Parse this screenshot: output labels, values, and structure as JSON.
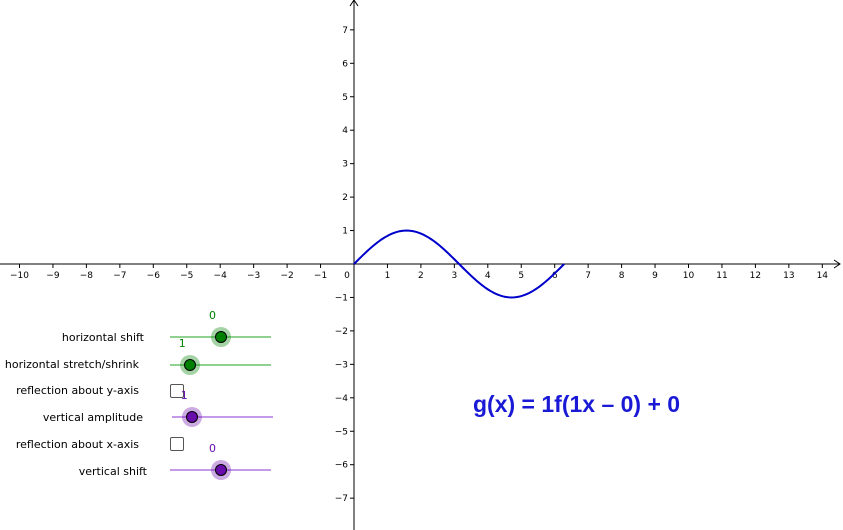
{
  "graph": {
    "x_ticks": [
      "-10",
      "-9",
      "-8",
      "-7",
      "-6",
      "-5",
      "-4",
      "-3",
      "-2",
      "-1",
      "0",
      "1",
      "2",
      "3",
      "4",
      "5",
      "6",
      "7",
      "8",
      "9",
      "10",
      "11",
      "12",
      "13",
      "14"
    ],
    "y_ticks": [
      "-7",
      "-6",
      "-5",
      "-4",
      "-3",
      "-2",
      "-1",
      "1",
      "2",
      "3",
      "4",
      "5",
      "6",
      "7"
    ],
    "curve": {
      "function": "sin",
      "x_range": [
        0,
        6.283
      ],
      "color": "#0000cc"
    }
  },
  "controls": {
    "horizontal_shift": {
      "label": "horizontal shift",
      "value": "0",
      "fraction": 0.5,
      "color": "#008000",
      "track": "#8fd18f"
    },
    "horizontal_stretch": {
      "label": "horizontal stretch/shrink",
      "value": "1",
      "fraction": 0.2,
      "color": "#008000",
      "track": "#8fd18f"
    },
    "reflection_y": {
      "label": "reflection about y-axis",
      "checked": false
    },
    "vertical_amplitude": {
      "label": "vertical amplitude",
      "value": "1",
      "fraction": 0.2,
      "color": "#6a0dad",
      "track": "#c49ae8"
    },
    "reflection_x": {
      "label": "reflection about x-axis",
      "checked": false
    },
    "vertical_shift": {
      "label": "vertical shift",
      "value": "0",
      "fraction": 0.5,
      "color": "#6a0dad",
      "track": "#c49ae8"
    }
  },
  "formula": "g(x) = 1f(1x – 0) + 0"
}
